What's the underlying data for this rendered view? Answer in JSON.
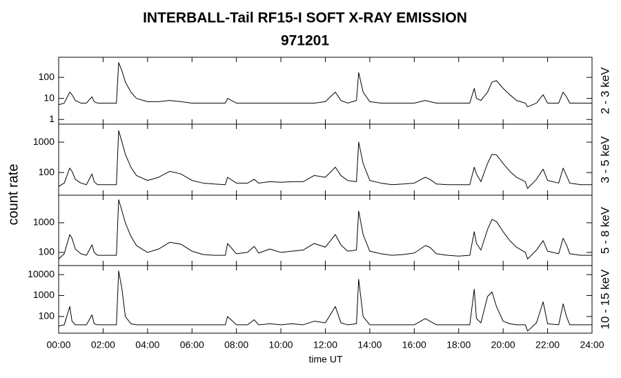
{
  "title": "INTERBALL-Tail RF15-I SOFT X-RAY EMISSION",
  "subtitle": "971201",
  "ylabel": "count rate",
  "xlabel": "time UT",
  "chart_data": [
    {
      "type": "line",
      "label": "2 - 3 keV",
      "color": "#000000",
      "log": true,
      "ylim": [
        0.6,
        900
      ],
      "yticks": [
        1,
        10,
        100
      ],
      "x": [
        0,
        0.25,
        0.5,
        0.6,
        0.75,
        1,
        1.25,
        1.5,
        1.6,
        1.75,
        2,
        2.25,
        2.6,
        2.7,
        2.85,
        3,
        3.25,
        3.5,
        4,
        4.5,
        5,
        5.5,
        6,
        6.5,
        7,
        7.5,
        7.6,
        8,
        8.5,
        8.8,
        9,
        9.5,
        10,
        10.5,
        11,
        11.5,
        12,
        12.45,
        12.7,
        13,
        13.4,
        13.5,
        13.7,
        14,
        14.5,
        15,
        15.5,
        16,
        16.5,
        16.7,
        17,
        17.5,
        18,
        18.5,
        18.7,
        18.8,
        19,
        19.3,
        19.5,
        19.7,
        20,
        20.3,
        20.6,
        21,
        21.1,
        21.5,
        21.8,
        22,
        22.5,
        22.7,
        22.85,
        23,
        23.5,
        24
      ],
      "values": [
        5,
        6,
        20,
        15,
        8,
        6,
        6,
        12,
        7,
        6,
        6,
        6,
        6,
        500,
        200,
        60,
        20,
        10,
        7,
        7,
        8,
        7,
        6,
        6,
        6,
        6,
        10,
        6,
        6,
        6,
        6,
        6,
        6,
        6,
        6,
        6,
        7,
        20,
        8,
        6,
        8,
        170,
        20,
        7,
        6,
        6,
        6,
        6,
        8,
        7,
        6,
        6,
        6,
        6,
        30,
        10,
        8,
        20,
        60,
        70,
        30,
        15,
        8,
        6,
        4,
        6,
        15,
        6,
        6,
        20,
        12,
        6,
        6,
        6
      ]
    },
    {
      "type": "line",
      "label": "3 - 5 keV",
      "color": "#000000",
      "log": true,
      "ylim": [
        18,
        3900
      ],
      "yticks": [
        100,
        1000
      ],
      "x": [
        0,
        0.25,
        0.5,
        0.6,
        0.75,
        1,
        1.25,
        1.5,
        1.6,
        1.75,
        2,
        2.25,
        2.6,
        2.7,
        2.85,
        3,
        3.25,
        3.5,
        4,
        4.5,
        5,
        5.5,
        6,
        6.5,
        7,
        7.5,
        7.6,
        8,
        8.5,
        8.8,
        9,
        9.5,
        10,
        10.5,
        11,
        11.5,
        12,
        12.45,
        12.7,
        13,
        13.4,
        13.5,
        13.7,
        14,
        14.5,
        15,
        15.5,
        16,
        16.5,
        16.7,
        17,
        17.5,
        18,
        18.5,
        18.7,
        18.8,
        19,
        19.3,
        19.5,
        19.7,
        20,
        20.3,
        20.6,
        21,
        21.1,
        21.5,
        21.8,
        22,
        22.5,
        22.7,
        22.85,
        23,
        23.5,
        24
      ],
      "values": [
        35,
        45,
        140,
        110,
        60,
        45,
        40,
        90,
        50,
        40,
        40,
        40,
        40,
        2400,
        1000,
        400,
        150,
        80,
        55,
        70,
        110,
        90,
        55,
        45,
        42,
        40,
        70,
        45,
        45,
        60,
        45,
        50,
        48,
        50,
        50,
        80,
        70,
        150,
        80,
        55,
        50,
        1000,
        200,
        55,
        45,
        40,
        42,
        45,
        70,
        60,
        42,
        40,
        40,
        40,
        150,
        90,
        50,
        200,
        400,
        380,
        200,
        110,
        70,
        50,
        30,
        60,
        130,
        55,
        45,
        140,
        80,
        45,
        40,
        40
      ]
    },
    {
      "type": "line",
      "label": "5 - 8 keV",
      "color": "#000000",
      "log": true,
      "ylim": [
        36,
        8500
      ],
      "yticks": [
        100,
        1000
      ],
      "x": [
        0,
        0.25,
        0.5,
        0.6,
        0.75,
        1,
        1.25,
        1.5,
        1.6,
        1.75,
        2,
        2.25,
        2.6,
        2.7,
        2.85,
        3,
        3.25,
        3.5,
        4,
        4.5,
        5,
        5.5,
        6,
        6.5,
        7,
        7.5,
        7.6,
        8,
        8.5,
        8.8,
        9,
        9.5,
        10,
        10.5,
        11,
        11.5,
        12,
        12.45,
        12.7,
        13,
        13.4,
        13.5,
        13.7,
        14,
        14.5,
        15,
        15.5,
        16,
        16.5,
        16.7,
        17,
        17.5,
        18,
        18.5,
        18.7,
        18.8,
        19,
        19.3,
        19.5,
        19.7,
        20,
        20.3,
        20.6,
        21,
        21.1,
        21.5,
        21.8,
        22,
        22.5,
        22.7,
        22.85,
        23,
        23.5,
        24
      ],
      "values": [
        60,
        90,
        400,
        300,
        130,
        90,
        80,
        180,
        100,
        80,
        80,
        80,
        80,
        6000,
        2500,
        1000,
        350,
        170,
        100,
        130,
        220,
        190,
        110,
        85,
        80,
        80,
        200,
        90,
        100,
        160,
        95,
        130,
        100,
        110,
        120,
        200,
        150,
        400,
        180,
        110,
        120,
        2500,
        400,
        110,
        90,
        80,
        85,
        95,
        170,
        150,
        90,
        80,
        75,
        80,
        500,
        200,
        120,
        600,
        1300,
        1100,
        500,
        250,
        150,
        100,
        60,
        120,
        250,
        110,
        90,
        300,
        180,
        90,
        80,
        80
      ]
    },
    {
      "type": "line",
      "label": "10 - 15 keV",
      "color": "#000000",
      "log": true,
      "ylim": [
        16,
        27000
      ],
      "yticks": [
        100,
        1000,
        10000
      ],
      "xlim": [
        0,
        24
      ],
      "xticks": [
        {
          "value": 0,
          "label": "00:00"
        },
        {
          "value": 2,
          "label": "02:00"
        },
        {
          "value": 4,
          "label": "04:00"
        },
        {
          "value": 6,
          "label": "06:00"
        },
        {
          "value": 8,
          "label": "08:00"
        },
        {
          "value": 10,
          "label": "10:00"
        },
        {
          "value": 12,
          "label": "12:00"
        },
        {
          "value": 14,
          "label": "14:00"
        },
        {
          "value": 16,
          "label": "16:00"
        },
        {
          "value": 18,
          "label": "18:00"
        },
        {
          "value": 20,
          "label": "20:00"
        },
        {
          "value": 22,
          "label": "22:00"
        },
        {
          "value": 24,
          "label": "24:00"
        }
      ],
      "x": [
        0,
        0.25,
        0.5,
        0.6,
        0.75,
        1,
        1.25,
        1.5,
        1.6,
        1.75,
        2,
        2.25,
        2.6,
        2.7,
        2.85,
        3,
        3.25,
        3.5,
        4,
        4.5,
        5,
        5.5,
        6,
        6.5,
        7,
        7.5,
        7.6,
        8,
        8.5,
        8.8,
        9,
        9.5,
        10,
        10.5,
        11,
        11.5,
        12,
        12.45,
        12.7,
        13,
        13.4,
        13.5,
        13.7,
        14,
        14.5,
        15,
        15.5,
        16,
        16.5,
        16.7,
        17,
        17.5,
        18,
        18.5,
        18.7,
        18.8,
        19,
        19.3,
        19.5,
        19.7,
        20,
        20.3,
        20.6,
        21,
        21.1,
        21.5,
        21.8,
        22,
        22.5,
        22.7,
        22.85,
        23,
        23.5,
        24
      ],
      "values": [
        35,
        40,
        300,
        60,
        40,
        40,
        40,
        120,
        45,
        40,
        40,
        40,
        40,
        15000,
        2000,
        100,
        45,
        40,
        40,
        40,
        40,
        40,
        40,
        40,
        40,
        40,
        100,
        40,
        40,
        70,
        40,
        45,
        40,
        45,
        40,
        60,
        50,
        300,
        50,
        40,
        45,
        6000,
        100,
        40,
        40,
        40,
        40,
        40,
        80,
        60,
        40,
        40,
        40,
        40,
        2000,
        80,
        50,
        900,
        1500,
        300,
        60,
        45,
        40,
        40,
        20,
        50,
        500,
        45,
        40,
        400,
        100,
        40,
        40,
        40
      ]
    }
  ]
}
